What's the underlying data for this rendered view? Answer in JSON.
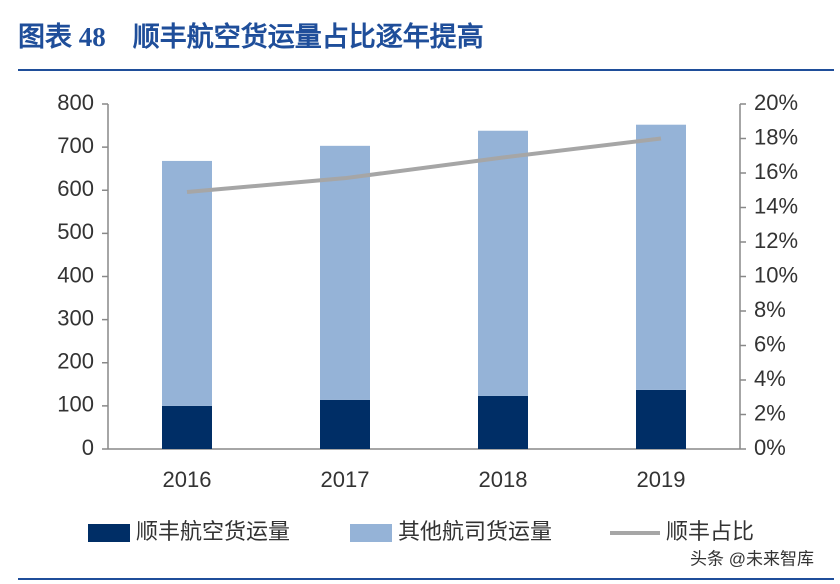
{
  "chart_data": {
    "type": "bar",
    "title": "图表 48　顺丰航空货运量占比逐年提高",
    "categories": [
      "2016",
      "2017",
      "2018",
      "2019"
    ],
    "series": [
      {
        "name": "顺丰航空货运量",
        "color": "#002e66",
        "values": [
          100,
          114,
          123,
          137
        ]
      },
      {
        "name": "其他航司货运量",
        "color": "#95b3d7",
        "values": [
          568,
          589,
          615,
          615
        ]
      },
      {
        "name": "顺丰占比",
        "color": "#a6a6a6",
        "values": [
          14.9,
          15.7,
          16.9,
          18.0
        ],
        "axis": "y2",
        "type": "line"
      }
    ],
    "stacked": true,
    "ylim": [
      0,
      800
    ],
    "yticks": [
      0,
      100,
      200,
      300,
      400,
      500,
      600,
      700,
      800
    ],
    "y2lim": [
      0,
      20
    ],
    "y2ticks": [
      {
        "value": 0,
        "label": "0%"
      },
      {
        "value": 2,
        "label": "2%"
      },
      {
        "value": 4,
        "label": "4%"
      },
      {
        "value": 6,
        "label": "6%"
      },
      {
        "value": 8,
        "label": "8%"
      },
      {
        "value": 10,
        "label": "10%"
      },
      {
        "value": 12,
        "label": "12%"
      },
      {
        "value": 14,
        "label": "14%"
      },
      {
        "value": 16,
        "label": "16%"
      },
      {
        "value": 18,
        "label": "18%"
      },
      {
        "value": 20,
        "label": "20%"
      }
    ],
    "legend": "bottom",
    "watermark": "头条 @未来智库"
  }
}
